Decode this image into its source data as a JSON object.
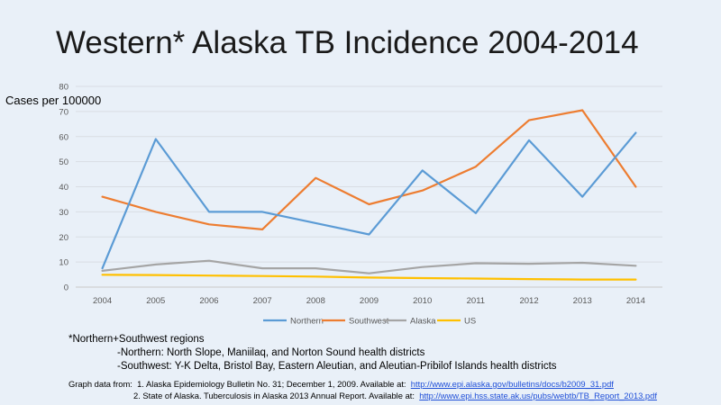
{
  "slide": {
    "title": "Western* Alaska TB Incidence 2004-2014",
    "notes": {
      "line1": "*Northern+Southwest regions",
      "line2": "-Northern: North Slope, Maniilaq, and Norton Sound health districts",
      "line3": "-Southwest: Y-K Delta, Bristol Bay, Eastern Aleutian, and Aleutian-Pribilof Islands health districts"
    },
    "sources": {
      "prefix": "Graph data from:",
      "s1_text": "1. Alaska Epidemiology Bulletin No. 31; December 1, 2009. Available at:",
      "s1_link": "http://www.epi.alaska.gov/bulletins/docs/b2009_31.pdf",
      "s2_text": "2. State of Alaska. Tuberculosis in Alaska 2013 Annual Report. Available at:",
      "s2_link": "http://www.epi.hss.state.ak.us/pubs/webtb/TB_Report_2013.pdf"
    }
  },
  "chart_data": {
    "type": "line",
    "title": "Western* Alaska TB Incidence 2004-2014",
    "xlabel": "",
    "ylabel": "Cases per 100000",
    "ylim": [
      0,
      80
    ],
    "yticks": [
      0,
      10,
      20,
      30,
      40,
      50,
      60,
      70,
      80
    ],
    "grid": true,
    "legend_position": "bottom",
    "x": [
      "2004",
      "2005",
      "2006",
      "2007",
      "2008",
      "2009",
      "2010",
      "2011",
      "2012",
      "2013",
      "2014"
    ],
    "series": [
      {
        "name": "Northern",
        "color": "#5b9bd5",
        "values": [
          7.5,
          59,
          30,
          30,
          25.5,
          21,
          46.5,
          29.5,
          58.5,
          36,
          61.5
        ]
      },
      {
        "name": "Southwest",
        "color": "#ed7d31",
        "values": [
          36,
          30,
          25,
          23,
          43.5,
          33,
          38.5,
          48,
          66.5,
          70.5,
          40
        ]
      },
      {
        "name": "Alaska",
        "color": "#a5a5a5",
        "values": [
          6.5,
          9,
          10.5,
          7.5,
          7.5,
          5.5,
          8,
          9.5,
          9.3,
          9.7,
          8.5
        ]
      },
      {
        "name": "US",
        "color": "#ffc000",
        "values": [
          4.9,
          4.8,
          4.6,
          4.4,
          4.2,
          3.8,
          3.6,
          3.4,
          3.2,
          3.0,
          3.0
        ]
      }
    ]
  }
}
